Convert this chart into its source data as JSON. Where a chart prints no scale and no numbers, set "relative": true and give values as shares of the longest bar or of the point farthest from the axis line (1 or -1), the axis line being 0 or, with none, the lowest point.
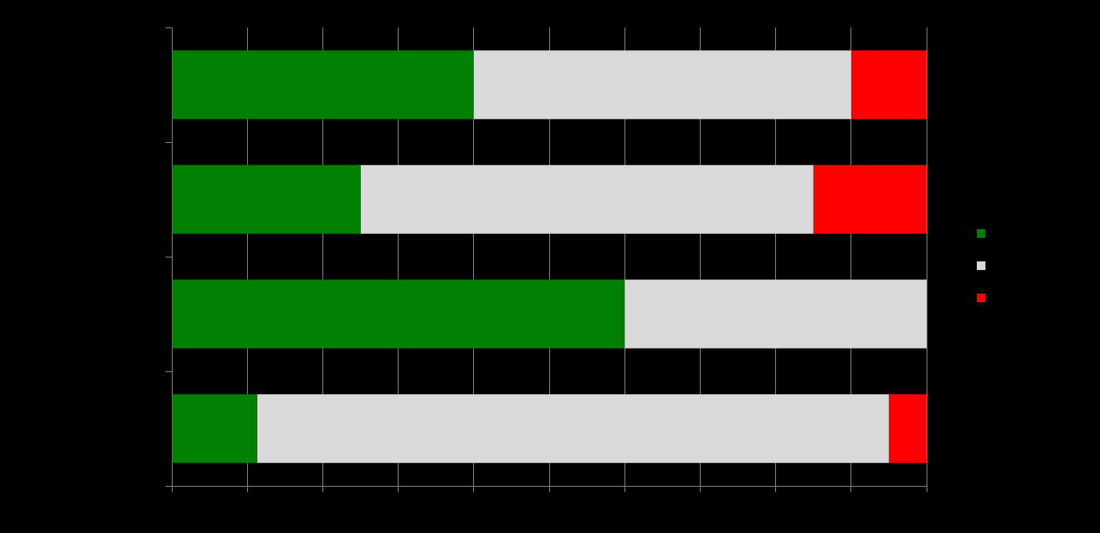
{
  "chart_data": {
    "type": "bar",
    "orientation": "horizontal",
    "stacked": true,
    "relative": true,
    "grid": "x",
    "categories": [
      null,
      null,
      null,
      null
    ],
    "series": [
      {
        "color": "#008000",
        "values": [
          0.4,
          0.25,
          0.6,
          0.113
        ]
      },
      {
        "color": "#d9d9d9",
        "values": [
          0.5,
          0.6,
          0.4,
          0.837
        ]
      },
      {
        "color": "#ff0000",
        "values": [
          0.1,
          0.15,
          0,
          0.05
        ]
      }
    ]
  }
}
